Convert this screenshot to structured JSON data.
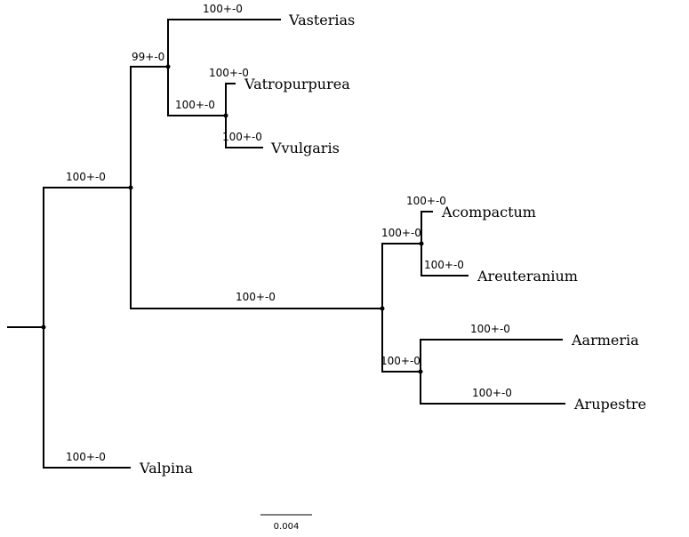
{
  "tree": {
    "taxa": {
      "vasterias": "Vasterias",
      "vatropurpurea": "Vatropurpurea",
      "vvulgaris": "Vvulgaris",
      "acompactum": "Acompactum",
      "areuteranium": "Areuteranium",
      "aarmeria": "Aarmeria",
      "arupestre": "Arupestre",
      "valpina": "Valpina"
    },
    "support": {
      "vasterias": "100+-0",
      "v_clade": "99+-0",
      "vatropurpurea": "100+-0",
      "vatro_vvulg": "100+-0",
      "vvulgaris": "100+-0",
      "big_clade": "100+-0",
      "acompactum": "100+-0",
      "acomp_areut": "100+-0",
      "areuteranium": "100+-0",
      "a_clade": "100+-0",
      "aarmeria": "100+-0",
      "aarm_arup": "100+-0",
      "arupestre": "100+-0",
      "valpina": "100+-0"
    },
    "scale_bar": "0.004",
    "colors": {
      "line": "#000000",
      "background": "#ffffff"
    }
  }
}
